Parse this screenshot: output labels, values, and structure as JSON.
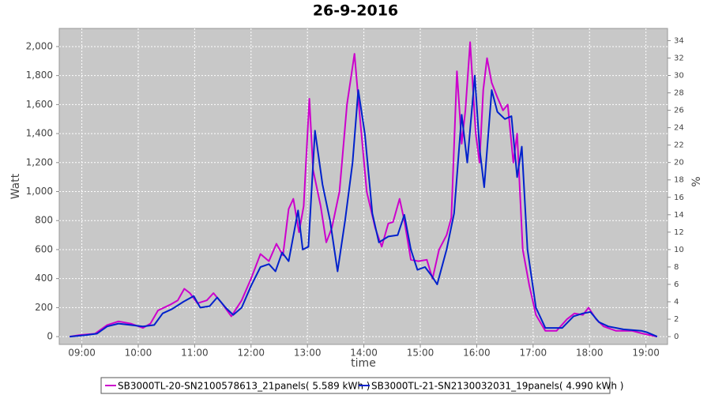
{
  "chart_data": {
    "type": "line",
    "title": "26-9-2016",
    "x_label": "time",
    "y_label": "Watt",
    "y2_label": "%",
    "xlim": [
      "08:36",
      "19:23"
    ],
    "xticks": [
      "09:00",
      "10:00",
      "11:00",
      "12:00",
      "13:00",
      "14:00",
      "15:00",
      "16:00",
      "17:00",
      "18:00",
      "19:00"
    ],
    "ylim": [
      -54,
      2125
    ],
    "yticks": [
      0,
      200,
      400,
      600,
      800,
      {
        "value": 1000,
        "label": "1,000"
      },
      {
        "value": 1200,
        "label": "1,200"
      },
      {
        "value": 1400,
        "label": "1,400"
      },
      {
        "value": 1600,
        "label": "1,600"
      },
      {
        "value": 1800,
        "label": "1,800"
      },
      {
        "value": 2000,
        "label": "2,000"
      }
    ],
    "y2lim": [
      -0.9,
      35.4
    ],
    "y2ticks": [
      0,
      2,
      4,
      6,
      8,
      10,
      12,
      14,
      16,
      18,
      20,
      22,
      24,
      26,
      28,
      30,
      32,
      34
    ],
    "grid": true,
    "series": [
      {
        "name": "SB3000TL-20-SN2100578613_21panels( 5.589 kWh )",
        "color": "#cc00cc",
        "x": [
          "08:47",
          "08:57",
          "09:14",
          "09:27",
          "09:39",
          "09:52",
          "10:05",
          "10:13",
          "10:21",
          "10:34",
          "10:42",
          "10:49",
          "10:55",
          "11:03",
          "11:13",
          "11:20",
          "11:29",
          "11:39",
          "11:50",
          "12:00",
          "12:10",
          "12:19",
          "12:27",
          "12:34",
          "12:40",
          "12:45",
          "12:51",
          "12:56",
          "13:02",
          "13:06",
          "13:14",
          "13:20",
          "13:26",
          "13:34",
          "13:42",
          "13:50",
          "13:56",
          "14:03",
          "14:12",
          "14:19",
          "14:26",
          "14:31",
          "14:38",
          "14:43",
          "14:50",
          "14:58",
          "15:07",
          "15:13",
          "15:20",
          "15:28",
          "15:33",
          "15:39",
          "15:44",
          "15:48",
          "15:53",
          "15:59",
          "16:03",
          "16:07",
          "16:11",
          "16:16",
          "16:22",
          "16:28",
          "16:33",
          "16:39",
          "16:43",
          "16:49",
          "16:56",
          "17:03",
          "17:13",
          "17:25",
          "17:36",
          "17:44",
          "17:53",
          "17:59",
          "18:07",
          "18:15",
          "18:28",
          "18:45",
          "18:57",
          "19:12"
        ],
        "values": [
          0,
          10,
          20,
          80,
          105,
          90,
          60,
          90,
          180,
          220,
          250,
          330,
          300,
          230,
          250,
          300,
          230,
          140,
          250,
          400,
          570,
          520,
          640,
          560,
          880,
          950,
          720,
          900,
          1640,
          1150,
          900,
          650,
          750,
          1000,
          1600,
          1950,
          1500,
          1000,
          750,
          620,
          780,
          790,
          950,
          800,
          530,
          520,
          530,
          400,
          600,
          700,
          820,
          1830,
          1330,
          1560,
          2030,
          1400,
          1200,
          1700,
          1920,
          1750,
          1650,
          1560,
          1600,
          1200,
          1400,
          600,
          350,
          150,
          40,
          40,
          120,
          160,
          150,
          200,
          120,
          70,
          40,
          40,
          20,
          0
        ]
      },
      {
        "name": "SB3000TL-21-SN2130032031_19panels( 4.990 kWh )",
        "color": "#0022cc",
        "x": [
          "08:47",
          "09:04",
          "09:16",
          "09:27",
          "09:39",
          "09:52",
          "10:05",
          "10:17",
          "10:26",
          "10:36",
          "10:48",
          "10:59",
          "11:06",
          "11:16",
          "11:24",
          "11:33",
          "11:41",
          "11:50",
          "12:00",
          "12:10",
          "12:19",
          "12:26",
          "12:33",
          "12:40",
          "12:50",
          "12:55",
          "13:01",
          "13:08",
          "13:16",
          "13:24",
          "13:32",
          "13:40",
          "13:48",
          "13:54",
          "14:01",
          "14:09",
          "14:16",
          "14:26",
          "14:36",
          "14:43",
          "14:50",
          "14:57",
          "15:05",
          "15:12",
          "15:18",
          "15:28",
          "15:36",
          "15:44",
          "15:50",
          "15:58",
          "16:03",
          "16:08",
          "16:16",
          "16:22",
          "16:30",
          "16:37",
          "16:43",
          "16:48",
          "16:54",
          "17:03",
          "17:13",
          "17:31",
          "17:43",
          "17:53",
          "18:01",
          "18:10",
          "18:20",
          "18:36",
          "18:55",
          "19:01",
          "19:12"
        ],
        "values": [
          0,
          10,
          20,
          70,
          90,
          80,
          70,
          80,
          160,
          190,
          240,
          280,
          200,
          210,
          270,
          200,
          150,
          200,
          350,
          480,
          500,
          450,
          580,
          520,
          870,
          600,
          620,
          1420,
          1050,
          800,
          450,
          800,
          1200,
          1700,
          1400,
          850,
          650,
          690,
          700,
          840,
          600,
          460,
          480,
          420,
          360,
          600,
          850,
          1530,
          1200,
          1800,
          1300,
          1030,
          1700,
          1550,
          1500,
          1520,
          1100,
          1310,
          600,
          200,
          60,
          60,
          140,
          160,
          170,
          100,
          70,
          50,
          40,
          30,
          0
        ]
      }
    ]
  }
}
